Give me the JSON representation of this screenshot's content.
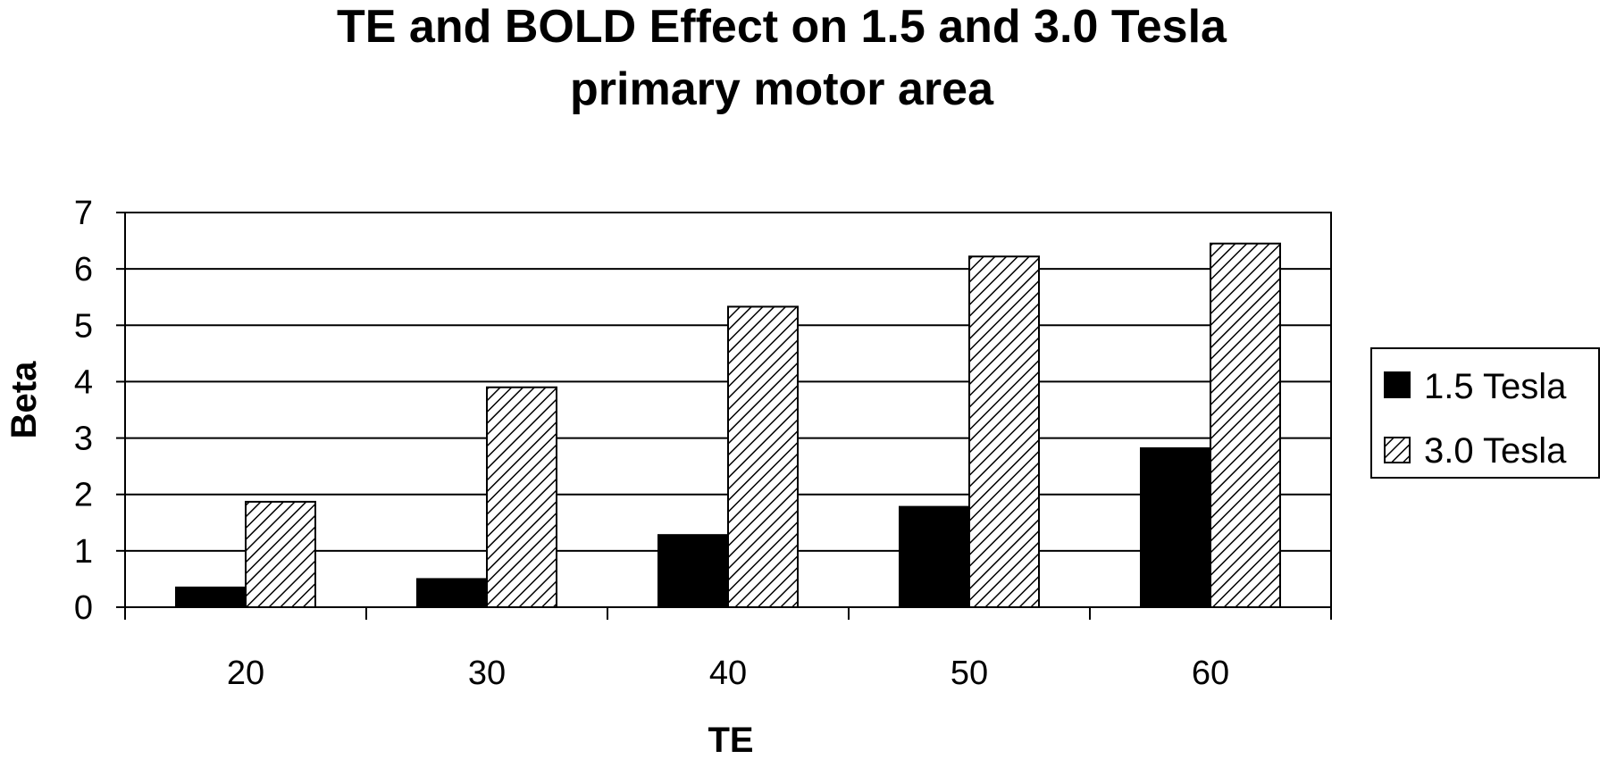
{
  "chart_data": {
    "type": "bar",
    "title": "TE and BOLD Effect on 1.5 and 3.0 Tesla",
    "subtitle": "primary motor area",
    "xlabel": "TE",
    "ylabel": "Beta",
    "categories": [
      "20",
      "30",
      "40",
      "50",
      "60"
    ],
    "series": [
      {
        "name": "1.5 Tesla",
        "values": [
          0.35,
          0.5,
          1.28,
          1.78,
          2.82
        ],
        "fill": "solid",
        "color": "#000000"
      },
      {
        "name": "3.0 Tesla",
        "values": [
          1.87,
          3.9,
          5.33,
          6.22,
          6.45
        ],
        "fill": "hatch",
        "color": "#ffffff"
      }
    ],
    "ylim": [
      0,
      7
    ],
    "yticks": [
      "0",
      "1",
      "2",
      "3",
      "4",
      "5",
      "6",
      "7"
    ],
    "grid": true,
    "legend_position": "right"
  }
}
